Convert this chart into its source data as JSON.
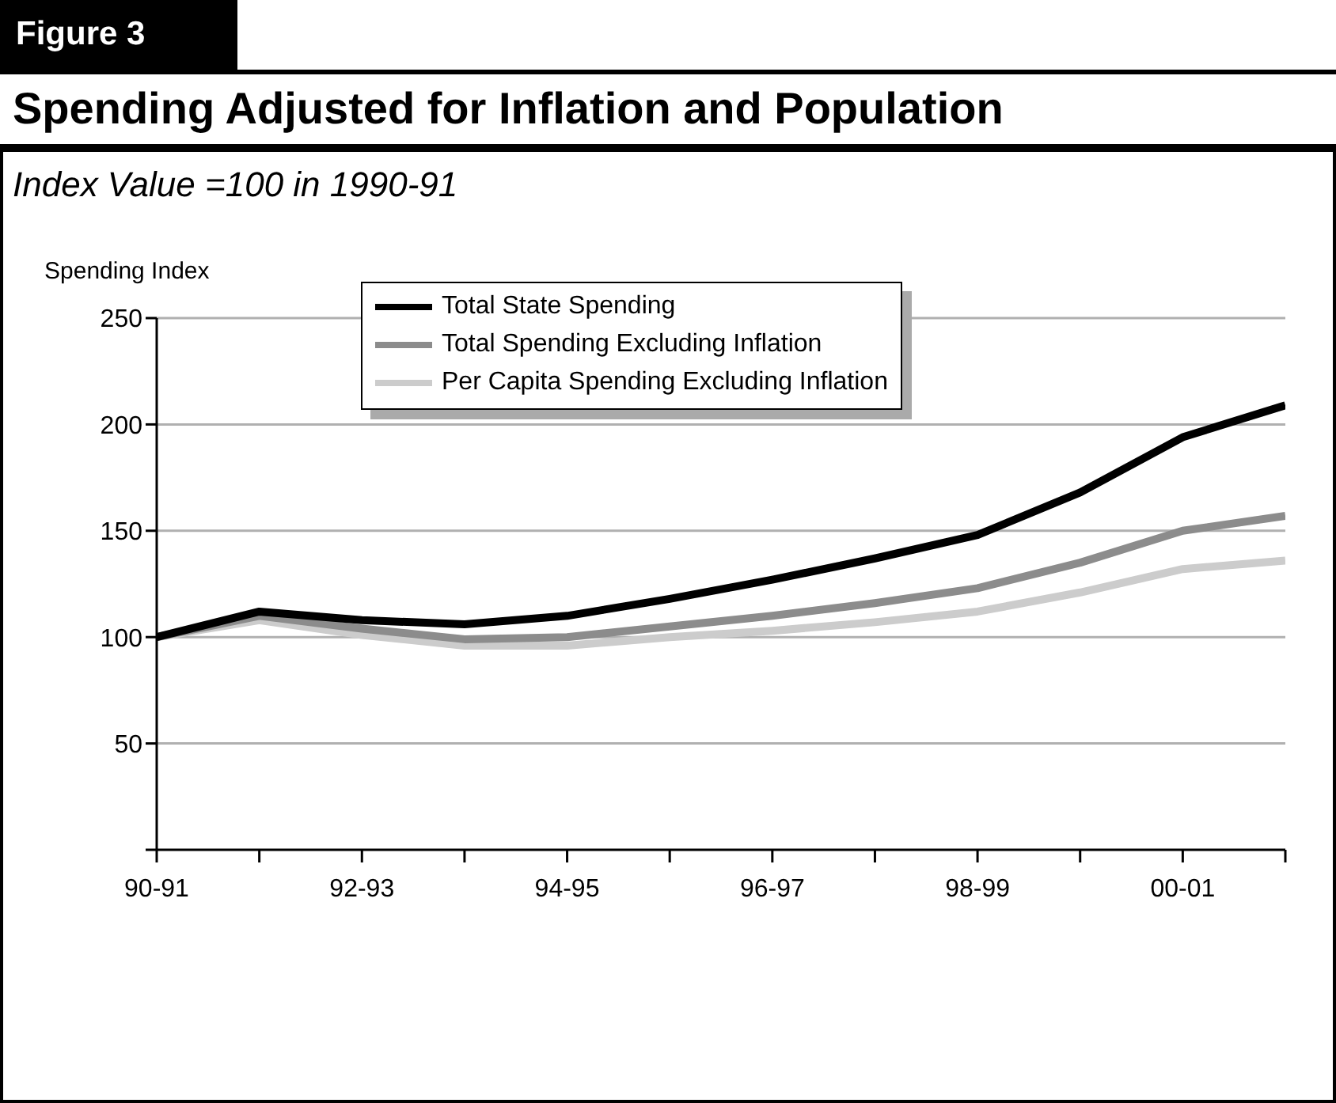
{
  "chart_data": {
    "type": "line",
    "title": "Spending Adjusted for Inflation and Population",
    "subtitle": "Index Value =100 in 1990-91",
    "annotations": [
      "Figure 3"
    ],
    "ylabel": "Spending Index",
    "categories": [
      "90-91",
      null,
      "92-93",
      null,
      "94-95",
      null,
      "96-97",
      null,
      "98-99",
      null,
      "00-01",
      null
    ],
    "series": [
      {
        "name": "Total State Spending",
        "color": "#000000",
        "values": [
          100,
          112,
          108,
          106,
          110,
          118,
          127,
          137,
          148,
          168,
          194,
          209
        ]
      },
      {
        "name": "Total Spending Excluding Inflation",
        "color": "#8c8c8c",
        "values": [
          100,
          110,
          104,
          99,
          100,
          105,
          110,
          116,
          123,
          135,
          150,
          157
        ]
      },
      {
        "name": "Per Capita Spending Excluding Inflation",
        "color": "#cccccc",
        "values": [
          100,
          108,
          101,
          96,
          96,
          100,
          103,
          107,
          112,
          121,
          132,
          136
        ]
      }
    ],
    "ylim": [
      0,
      250
    ],
    "yticks": [
      {
        "value": 0,
        "label": null
      },
      50,
      100,
      150,
      200,
      250
    ],
    "grid": "y",
    "legend": "top",
    "marker": "none",
    "line_style": "solid"
  }
}
